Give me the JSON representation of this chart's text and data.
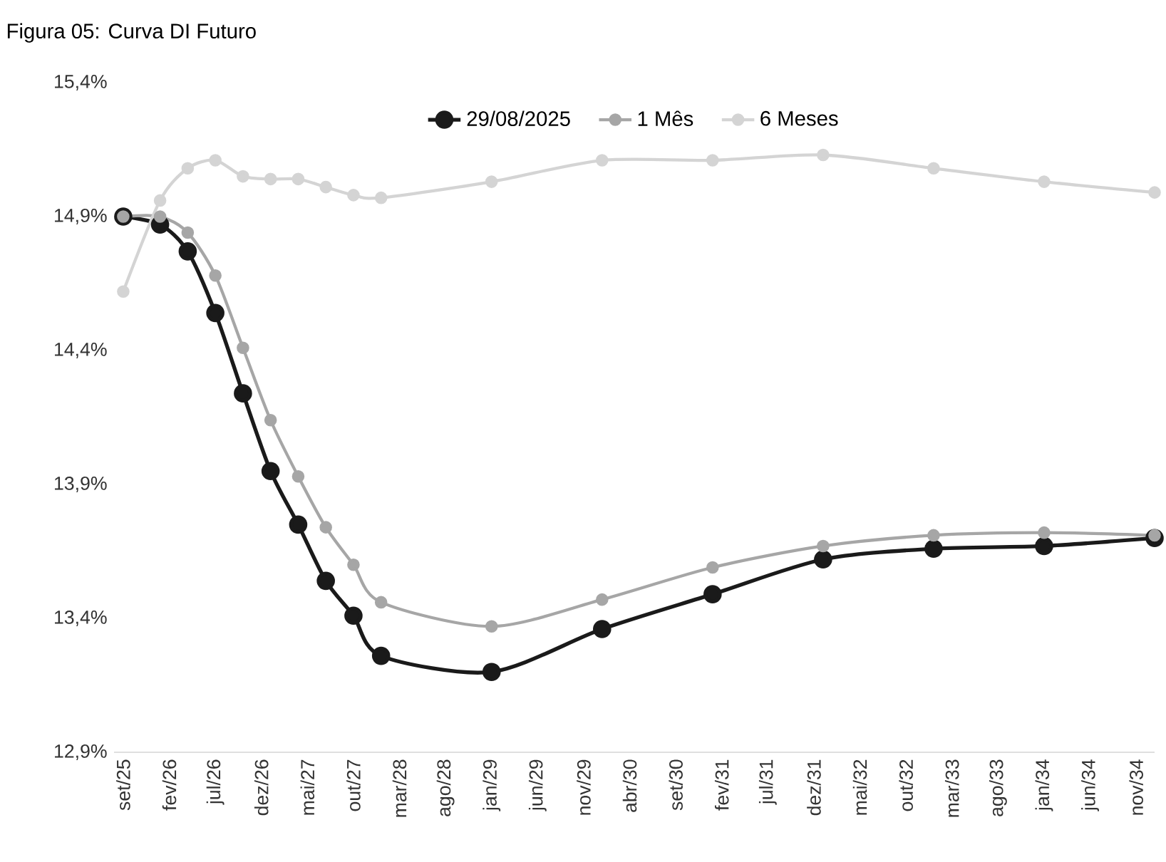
{
  "chart_data": {
    "type": "line",
    "title": "Figura 05: Curva DI Futuro",
    "x": [
      "2025-09",
      "2026-01",
      "2026-04",
      "2026-07",
      "2026-10",
      "2027-01",
      "2027-04",
      "2027-07",
      "2027-10",
      "2028-01",
      "2029-01",
      "2030-01",
      "2031-01",
      "2032-01",
      "2033-01",
      "2034-01",
      "2035-01"
    ],
    "series": [
      {
        "name": "29/08/2025",
        "color": "#1a1a1a",
        "values": [
          14.9,
          14.87,
          14.77,
          14.54,
          14.24,
          13.95,
          13.75,
          13.54,
          13.41,
          13.26,
          13.2,
          13.36,
          13.49,
          13.62,
          13.66,
          13.67,
          13.7
        ]
      },
      {
        "name": "1 Mês",
        "color": "#a6a6a6",
        "values": [
          14.9,
          14.9,
          14.84,
          14.68,
          14.41,
          14.14,
          13.93,
          13.74,
          13.6,
          13.46,
          13.37,
          13.47,
          13.59,
          13.67,
          13.71,
          13.72,
          13.71
        ]
      },
      {
        "name": "6 Meses",
        "color": "#d4d4d4",
        "values": [
          14.62,
          14.96,
          15.08,
          15.11,
          15.05,
          15.04,
          15.04,
          15.01,
          14.98,
          14.97,
          15.03,
          15.11,
          15.11,
          15.13,
          15.08,
          15.03,
          14.99
        ]
      }
    ],
    "xlim": [
      "2025-08",
      "2035-01"
    ],
    "xticks": [
      {
        "value": "2025-09",
        "label": "set/25"
      },
      {
        "value": "2026-02",
        "label": "fev/26"
      },
      {
        "value": "2026-07",
        "label": "jul/26"
      },
      {
        "value": "2026-12",
        "label": "dez/26"
      },
      {
        "value": "2027-05",
        "label": "mai/27"
      },
      {
        "value": "2027-10",
        "label": "out/27"
      },
      {
        "value": "2028-03",
        "label": "mar/28"
      },
      {
        "value": "2028-08",
        "label": "ago/28"
      },
      {
        "value": "2029-01",
        "label": "jan/29"
      },
      {
        "value": "2029-06",
        "label": "jun/29"
      },
      {
        "value": "2029-11",
        "label": "nov/29"
      },
      {
        "value": "2030-04",
        "label": "abr/30"
      },
      {
        "value": "2030-09",
        "label": "set/30"
      },
      {
        "value": "2031-02",
        "label": "fev/31"
      },
      {
        "value": "2031-07",
        "label": "jul/31"
      },
      {
        "value": "2031-12",
        "label": "dez/31"
      },
      {
        "value": "2032-05",
        "label": "mai/32"
      },
      {
        "value": "2032-10",
        "label": "out/32"
      },
      {
        "value": "2033-03",
        "label": "mar/33"
      },
      {
        "value": "2033-08",
        "label": "ago/33"
      },
      {
        "value": "2034-01",
        "label": "jan/34"
      },
      {
        "value": "2034-06",
        "label": "jun/34"
      },
      {
        "value": "2034-11",
        "label": "nov/34"
      }
    ],
    "ylim": [
      12.9,
      15.4
    ],
    "yticks": [
      {
        "value": 12.9,
        "label": "12,9%"
      },
      {
        "value": 13.4,
        "label": "13,4%"
      },
      {
        "value": 13.9,
        "label": "13,9%"
      },
      {
        "value": 14.4,
        "label": "14,4%"
      },
      {
        "value": 14.9,
        "label": "14,9%"
      },
      {
        "value": 15.4,
        "label": "15,4%"
      }
    ],
    "grid": false,
    "legend": "top",
    "marker": "circle",
    "line_style": "solid"
  }
}
